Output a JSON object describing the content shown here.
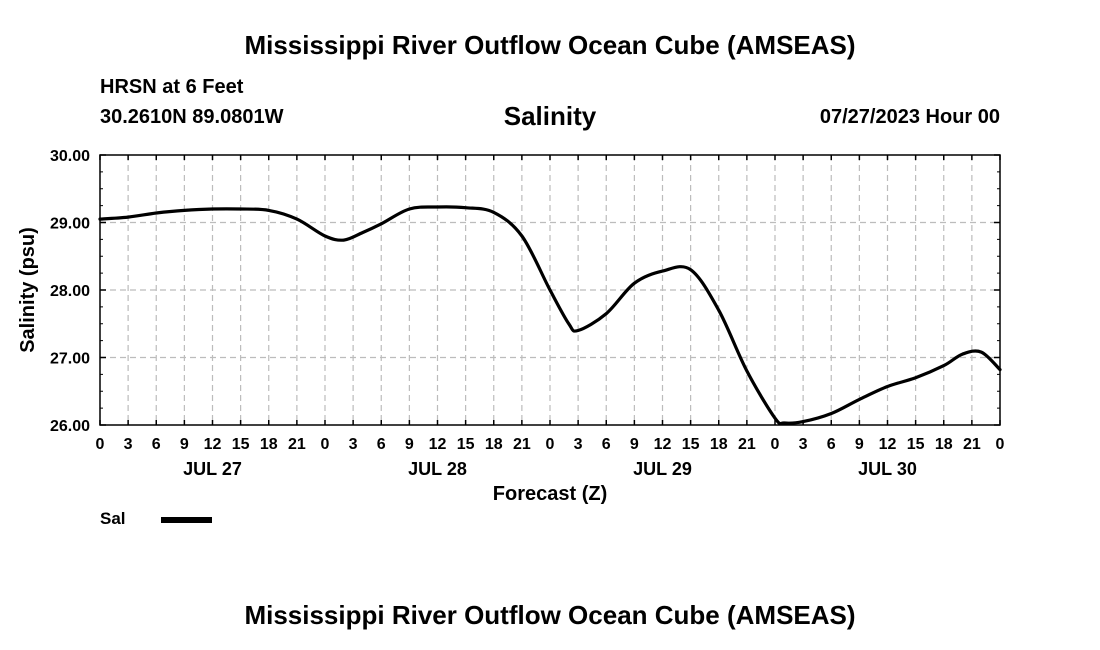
{
  "header": {
    "title": "Mississippi River Outflow Ocean Cube (AMSEAS)",
    "station": "HRSN at 6 Feet",
    "coords": "30.2610N  89.0801W",
    "date": "07/27/2023 Hour 00"
  },
  "footer": {
    "title": "Mississippi River Outflow Ocean Cube (AMSEAS)"
  },
  "legend": {
    "label": "Sal"
  },
  "chart_data": {
    "type": "line",
    "title": "Salinity",
    "xlabel": "Forecast (Z)",
    "ylabel": "Salinity (psu)",
    "ylim": [
      26.0,
      30.0
    ],
    "xlim": [
      0,
      96
    ],
    "grid": true,
    "x_unit": "hours since 07/27/2023 00Z",
    "y_ticks": [
      "26.00",
      "27.00",
      "28.00",
      "29.00",
      "30.00"
    ],
    "x_tick_labels": [
      "0",
      "3",
      "6",
      "9",
      "12",
      "15",
      "18",
      "21",
      "0",
      "3",
      "6",
      "9",
      "12",
      "15",
      "18",
      "21",
      "0",
      "3",
      "6",
      "9",
      "12",
      "15",
      "18",
      "21",
      "0",
      "3",
      "6",
      "9",
      "12",
      "15",
      "18",
      "21",
      "0"
    ],
    "day_labels": [
      {
        "label": "JUL 27",
        "hour": 12
      },
      {
        "label": "JUL 28",
        "hour": 36
      },
      {
        "label": "JUL 29",
        "hour": 60
      },
      {
        "label": "JUL 30",
        "hour": 84
      }
    ],
    "series": [
      {
        "name": "Sal",
        "x": [
          0,
          3,
          6,
          9,
          12,
          15,
          18,
          21,
          24,
          26,
          28,
          30,
          33,
          36,
          39,
          42,
          45,
          48,
          50,
          51,
          54,
          57,
          60,
          63,
          66,
          69,
          72,
          73,
          75,
          78,
          81,
          84,
          87,
          90,
          92,
          94,
          96
        ],
        "values": [
          29.05,
          29.08,
          29.14,
          29.18,
          29.2,
          29.2,
          29.18,
          29.05,
          28.8,
          28.74,
          28.85,
          28.98,
          29.2,
          29.23,
          29.22,
          29.15,
          28.8,
          28.0,
          27.5,
          27.4,
          27.65,
          28.1,
          28.28,
          28.3,
          27.7,
          26.8,
          26.1,
          26.03,
          26.05,
          26.17,
          26.38,
          26.57,
          26.7,
          26.88,
          27.05,
          27.08,
          26.82
        ]
      }
    ]
  }
}
